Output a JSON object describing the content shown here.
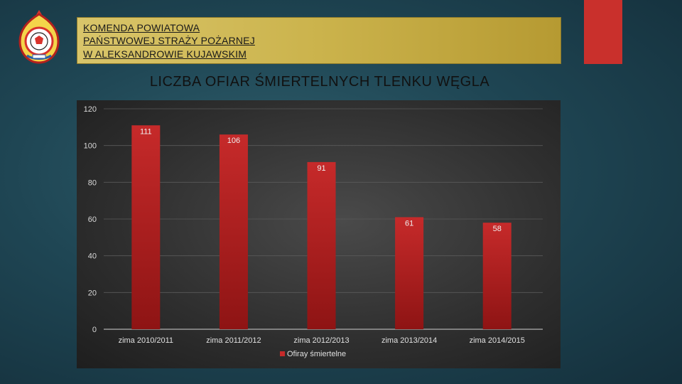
{
  "header": {
    "line1": "KOMENDA POWIATOWA",
    "line2": "PAŃSTWOWEJ STRAŻY POŻARNEJ",
    "line3": "W ALEKSANDROWIE KUJAWSKIM"
  },
  "logo_icon": "fire-brigade-emblem-icon",
  "slide_title": "LICZBA OFIAR ŚMIERTELNYCH TLENKU WĘGLA",
  "colors": {
    "bar": "#c62a2a",
    "bar_dark": "#8e1414",
    "accent_tab": "#c9302c",
    "header_bg": "#cbb34c"
  },
  "chart_data": {
    "type": "bar",
    "categories": [
      "zima 2010/2011",
      "zima 2011/2012",
      "zima 2012/2013",
      "zima 2013/2014",
      "zima 2014/2015"
    ],
    "series": [
      {
        "name": "Ofiray śmiertelne",
        "values": [
          111,
          106,
          91,
          61,
          58
        ]
      }
    ],
    "data_labels": [
      "111",
      "106",
      "91",
      "61",
      "58"
    ],
    "y_ticks": [
      "0",
      "20",
      "40",
      "60",
      "80",
      "100",
      "120"
    ],
    "ylim": [
      0,
      120
    ],
    "grid": true,
    "legend_position": "bottom"
  }
}
